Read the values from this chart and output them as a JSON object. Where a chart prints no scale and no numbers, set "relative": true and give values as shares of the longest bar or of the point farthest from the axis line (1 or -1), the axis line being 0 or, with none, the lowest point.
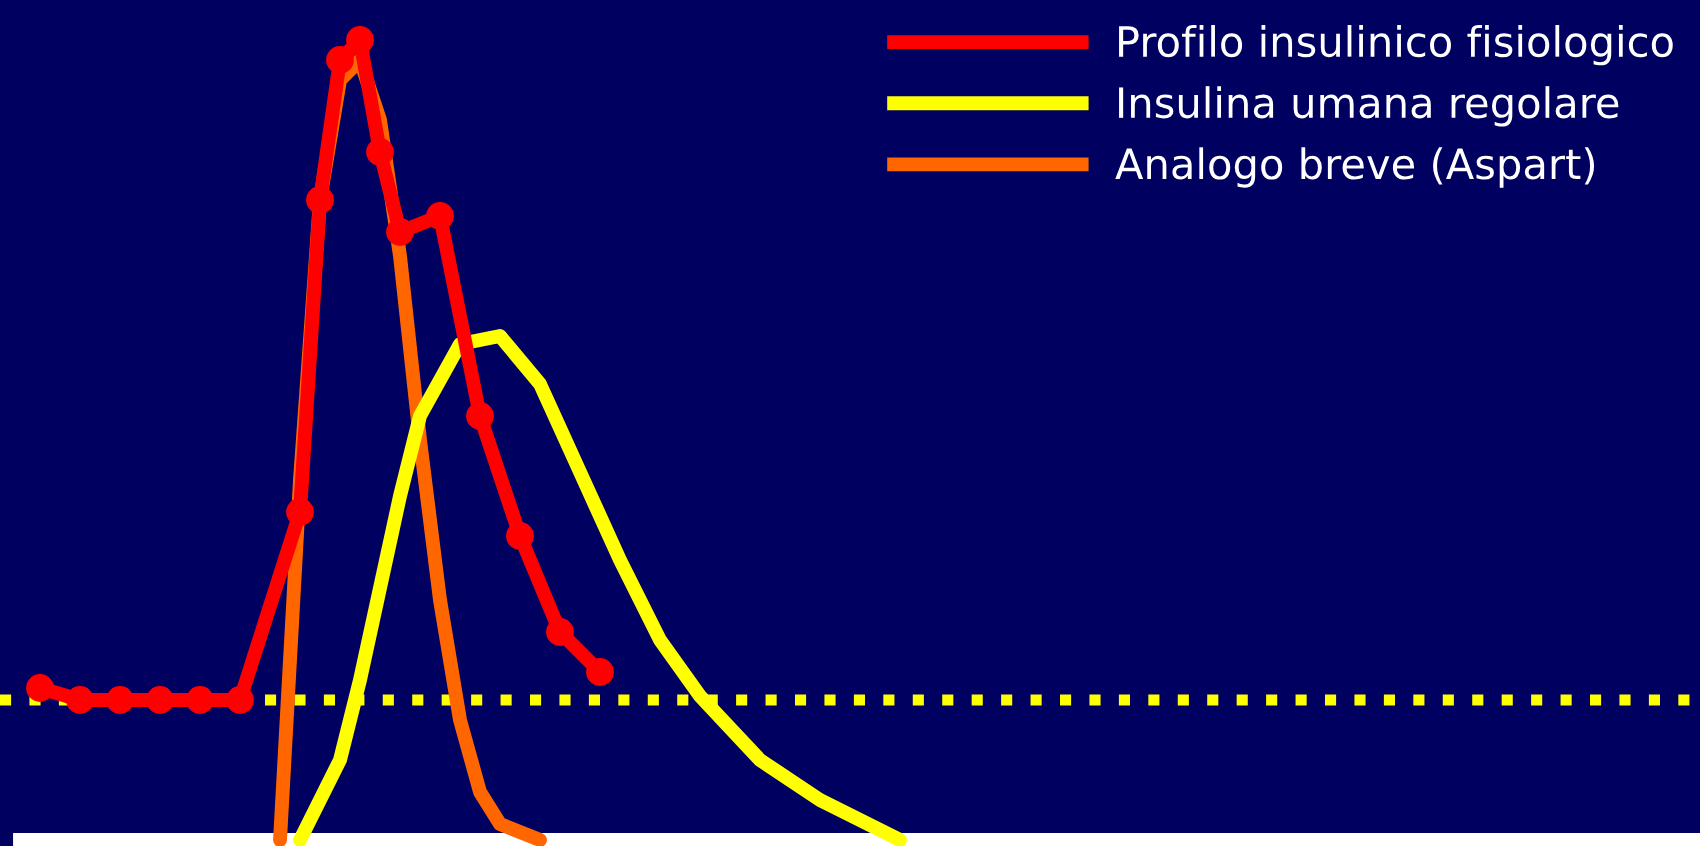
{
  "chart_data": {
    "type": "line",
    "relative": true,
    "legend": "top right",
    "categories": [
      null,
      null,
      null,
      null,
      null,
      null,
      null,
      null,
      null,
      null,
      null,
      null,
      null,
      null,
      null,
      null,
      null,
      null,
      null,
      null,
      null,
      null,
      null,
      null,
      null,
      null,
      null,
      null,
      null,
      null,
      null,
      null,
      null,
      null,
      null,
      null,
      null,
      null,
      null,
      null,
      null,
      null,
      null,
      null
    ],
    "series": [
      {
        "name": "Profilo insulinico fisiologico",
        "color": "#ff0000",
        "marker": "circle",
        "values": [
          0.19,
          null,
          0.175,
          null,
          0.175,
          null,
          0.175,
          null,
          0.175,
          null,
          0.175,
          null,
          null,
          0.41,
          0.8,
          0.975,
          1.0,
          0.86,
          0.76,
          null,
          0.78,
          null,
          0.53,
          null,
          0.38,
          null,
          0.26,
          null,
          0.21,
          null,
          null,
          null,
          null,
          null,
          null,
          null,
          null,
          null,
          null,
          null,
          null,
          null,
          null,
          null
        ]
      },
      {
        "name": "Insulina umana regolare",
        "color": "#ffff00",
        "marker": "none",
        "values": [
          null,
          null,
          null,
          null,
          null,
          null,
          null,
          null,
          null,
          null,
          null,
          null,
          null,
          0,
          null,
          0.1,
          0.2,
          null,
          0.43,
          0.53,
          null,
          0.62,
          null,
          0.63,
          null,
          0.57,
          null,
          0.46,
          null,
          0.35,
          null,
          0.25,
          null,
          0.18,
          null,
          null,
          0.1,
          null,
          null,
          0.05,
          null,
          null,
          null,
          0
        ]
      },
      {
        "name": "Analogo breve (Aspart)",
        "color": "#ff6600",
        "marker": "none",
        "values": [
          null,
          null,
          null,
          null,
          null,
          null,
          null,
          null,
          null,
          null,
          null,
          null,
          0,
          0.45,
          0.8,
          0.95,
          0.975,
          0.9,
          0.73,
          0.5,
          0.3,
          0.15,
          0.06,
          0.02,
          null,
          0,
          null,
          null,
          null,
          null,
          null,
          null,
          null,
          null,
          null,
          null,
          null,
          null,
          null,
          null,
          null,
          null,
          null,
          null
        ]
      }
    ],
    "ref_lines": [
      {
        "axis": "y",
        "value": 0.175,
        "color": "#ffff00",
        "line_style": "dotted"
      }
    ]
  }
}
